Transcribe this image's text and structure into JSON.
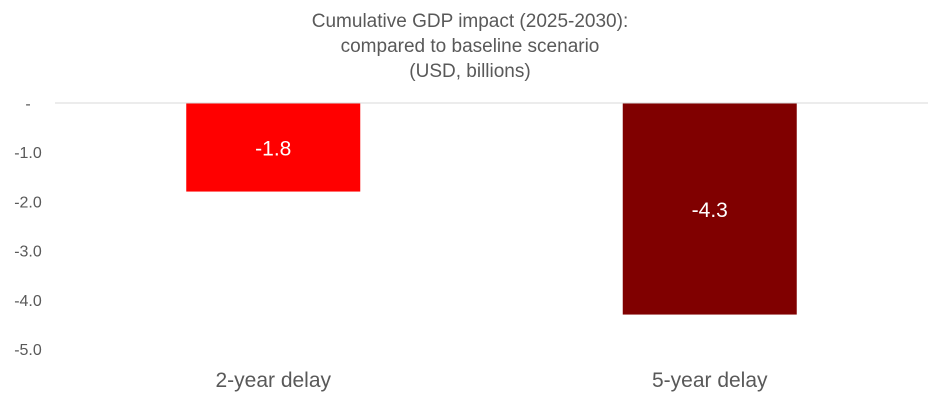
{
  "chart_data": {
    "type": "bar",
    "title_lines": [
      "Cumulative GDP impact (2025-2030):",
      "compared to baseline scenario",
      "(USD, billions)"
    ],
    "categories": [
      "2-year delay",
      "5-year delay"
    ],
    "values": [
      -1.8,
      -4.3
    ],
    "data_labels": [
      "-1.8",
      "-4.3"
    ],
    "bar_colors": [
      "#ff0000",
      "#800000"
    ],
    "ylim": [
      -5.0,
      0
    ],
    "yticks": [
      0,
      -1.0,
      -2.0,
      -3.0,
      -4.0,
      -5.0
    ],
    "ytick_labels": [
      "-",
      "-1.0",
      "-2.0",
      "-3.0",
      "-4.0",
      "-5.0"
    ],
    "xlabel": "",
    "ylabel": "",
    "baseline_color": "#d9d9d9"
  }
}
